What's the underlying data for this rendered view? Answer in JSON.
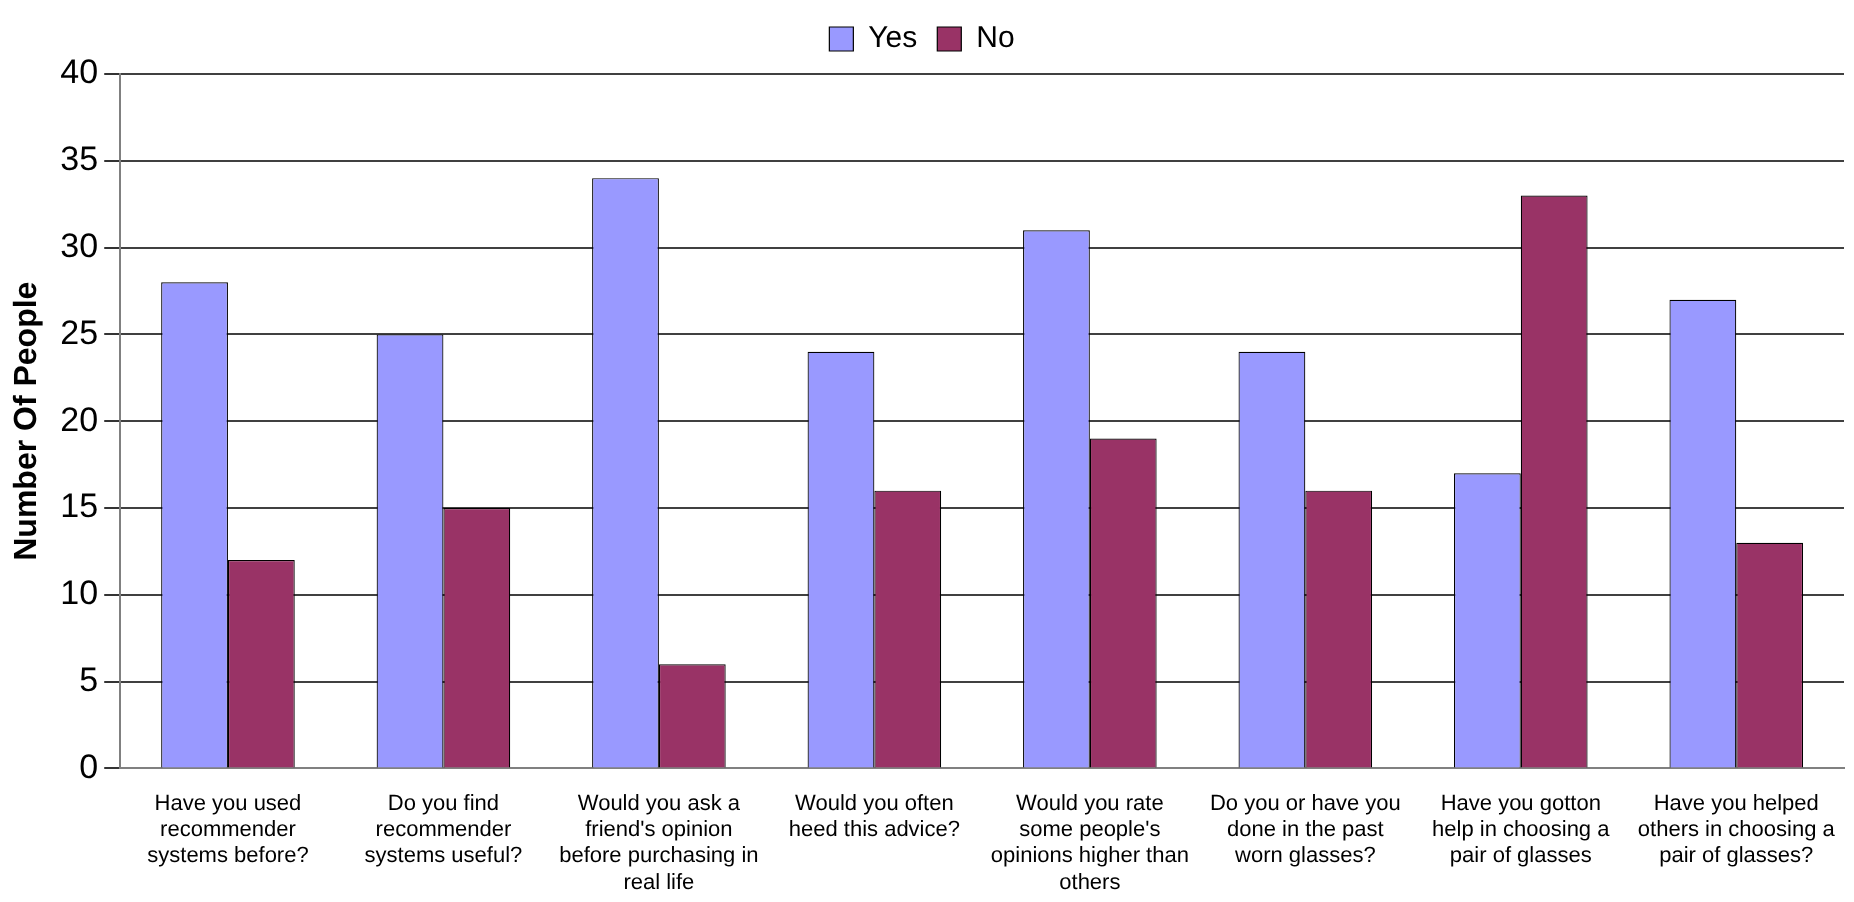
{
  "chart_data": {
    "type": "bar",
    "ylabel": "Number Of People",
    "categories": [
      "Have you used recommender systems before?",
      "Do you find recommender systems useful?",
      "Would you ask a friend's opinion before purchasing in real life",
      "Would you often heed this advice?",
      "Would you rate some people's opinions higher than others",
      "Do you or have you done in the past worn glasses?",
      "Have you gotton help in choosing a pair of glasses",
      "Have you helped others in choosing a pair of glasses?"
    ],
    "series": [
      {
        "name": "Yes",
        "color": "#9999ff",
        "values": [
          28,
          25,
          34,
          24,
          31,
          24,
          17,
          27
        ]
      },
      {
        "name": "No",
        "color": "#993366",
        "values": [
          12,
          15,
          6,
          16,
          19,
          16,
          33,
          13
        ]
      }
    ],
    "ylim": [
      0,
      40
    ],
    "yticks": [
      0,
      5,
      10,
      15,
      20,
      25,
      30,
      35,
      40
    ],
    "grid": "y",
    "legend": "top"
  }
}
